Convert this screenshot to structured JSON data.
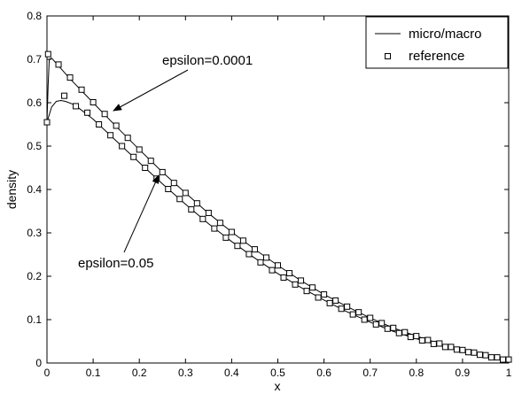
{
  "chart_data": {
    "type": "line",
    "xlabel": "x",
    "ylabel": "density",
    "xlim": [
      0,
      1
    ],
    "ylim": [
      0,
      0.8
    ],
    "xticks": [
      0,
      0.1,
      0.2,
      0.3,
      0.4,
      0.5,
      0.6,
      0.7,
      0.8,
      0.9,
      1
    ],
    "yticks": [
      0,
      0.1,
      0.2,
      0.3,
      0.4,
      0.5,
      0.6,
      0.7,
      0.8
    ],
    "xtick_labels": [
      "0",
      "0.1",
      "0.2",
      "0.3",
      "0.4",
      "0.5",
      "0.6",
      "0.7",
      "0.8",
      "0.9",
      "1"
    ],
    "ytick_labels": [
      "0",
      "0.1",
      "0.2",
      "0.3",
      "0.4",
      "0.5",
      "0.6",
      "0.7",
      "0.8"
    ],
    "grid": false,
    "legend_position": "top-right",
    "legend": [
      {
        "label": "micro/macro",
        "marker": "line"
      },
      {
        "label": "reference",
        "marker": "square"
      }
    ],
    "series": [
      {
        "name": "micro/macro (epsilon=0.0001)",
        "style": "line",
        "x": [
          0,
          0.0025,
          0.005,
          0.01,
          0.05,
          0.1,
          0.15,
          0.2,
          0.25,
          0.3,
          0.35,
          0.4,
          0.45,
          0.5,
          0.55,
          0.6,
          0.65,
          0.7,
          0.75,
          0.8,
          0.85,
          0.9,
          0.95,
          1
        ],
        "y": [
          0.555,
          0.64,
          0.7,
          0.703,
          0.655,
          0.6,
          0.545,
          0.492,
          0.44,
          0.392,
          0.345,
          0.302,
          0.262,
          0.225,
          0.19,
          0.158,
          0.13,
          0.104,
          0.081,
          0.062,
          0.045,
          0.03,
          0.018,
          0.008
        ]
      },
      {
        "name": "micro/macro (epsilon=0.05)",
        "style": "line",
        "x": [
          0,
          0.01,
          0.02,
          0.03,
          0.04,
          0.06,
          0.1,
          0.15,
          0.2,
          0.25,
          0.3,
          0.35,
          0.4,
          0.45,
          0.5,
          0.55,
          0.6,
          0.65,
          0.7,
          0.75,
          0.8,
          0.85,
          0.9,
          0.95,
          1
        ],
        "y": [
          0.555,
          0.59,
          0.603,
          0.605,
          0.603,
          0.595,
          0.562,
          0.512,
          0.462,
          0.413,
          0.366,
          0.321,
          0.28,
          0.242,
          0.206,
          0.174,
          0.145,
          0.118,
          0.094,
          0.073,
          0.056,
          0.04,
          0.027,
          0.015,
          0.004
        ]
      },
      {
        "name": "reference (epsilon=0.0001)",
        "style": "square",
        "x": [
          0,
          0.0025,
          0.025,
          0.05,
          0.075,
          0.1,
          0.125,
          0.15,
          0.175,
          0.2,
          0.225,
          0.25,
          0.275,
          0.3,
          0.325,
          0.35,
          0.375,
          0.4,
          0.425,
          0.45,
          0.475,
          0.5,
          0.525,
          0.55,
          0.575,
          0.6,
          0.625,
          0.65,
          0.675,
          0.7,
          0.725,
          0.75,
          0.775,
          0.8,
          0.825,
          0.85,
          0.875,
          0.9,
          0.925,
          0.95,
          0.975,
          1
        ],
        "y": [
          0.555,
          0.712,
          0.688,
          0.658,
          0.63,
          0.601,
          0.574,
          0.547,
          0.519,
          0.492,
          0.466,
          0.44,
          0.415,
          0.392,
          0.368,
          0.346,
          0.323,
          0.302,
          0.282,
          0.262,
          0.243,
          0.225,
          0.207,
          0.19,
          0.174,
          0.158,
          0.144,
          0.13,
          0.117,
          0.104,
          0.092,
          0.081,
          0.071,
          0.062,
          0.053,
          0.045,
          0.037,
          0.03,
          0.024,
          0.018,
          0.013,
          0.008
        ]
      },
      {
        "name": "reference (epsilon=0.05)",
        "style": "square",
        "x": [
          0.0375,
          0.0625,
          0.0875,
          0.1125,
          0.1375,
          0.1625,
          0.1875,
          0.2125,
          0.2375,
          0.2625,
          0.2875,
          0.3125,
          0.3375,
          0.3625,
          0.3875,
          0.4125,
          0.4375,
          0.4625,
          0.4875,
          0.5125,
          0.5375,
          0.5625,
          0.5875,
          0.6125,
          0.6375,
          0.6625,
          0.6875,
          0.7125,
          0.7375,
          0.7625,
          0.7875,
          0.8125,
          0.8375,
          0.8625,
          0.8875,
          0.9125,
          0.9375,
          0.9625,
          0.9875
        ],
        "y": [
          0.616,
          0.592,
          0.577,
          0.55,
          0.525,
          0.5,
          0.475,
          0.45,
          0.425,
          0.401,
          0.378,
          0.354,
          0.332,
          0.31,
          0.289,
          0.27,
          0.251,
          0.232,
          0.214,
          0.197,
          0.181,
          0.166,
          0.151,
          0.138,
          0.125,
          0.112,
          0.1,
          0.089,
          0.079,
          0.069,
          0.06,
          0.052,
          0.044,
          0.037,
          0.031,
          0.025,
          0.019,
          0.013,
          0.008
        ]
      }
    ],
    "annotations": [
      {
        "text": "epsilon=0.0001",
        "points_to": {
          "x": 0.14,
          "y": 0.565
        }
      },
      {
        "text": "epsilon=0.05",
        "points_to": {
          "x": 0.24,
          "y": 0.43
        }
      }
    ]
  }
}
